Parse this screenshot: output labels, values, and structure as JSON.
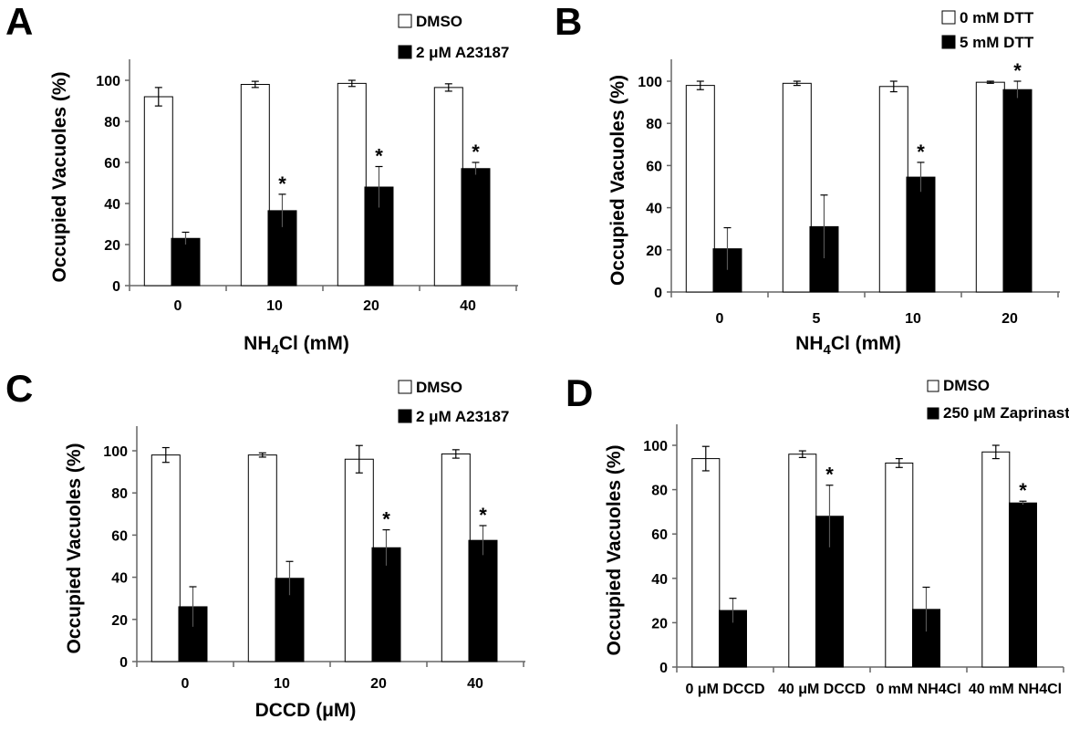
{
  "chart_data": [
    {
      "panel": "A",
      "type": "bar",
      "categories": [
        "0",
        "10",
        "20",
        "40"
      ],
      "series": [
        {
          "name": "DMSO",
          "values": [
            92,
            98,
            98.5,
            96.5
          ],
          "errors": [
            4.5,
            1.5,
            1.5,
            1.8
          ],
          "fill": "white"
        },
        {
          "name": "2 μM A23187",
          "values": [
            23,
            36.5,
            48,
            57
          ],
          "errors": [
            3,
            8,
            10,
            3
          ],
          "fill": "black"
        }
      ],
      "significance": [
        "",
        "*",
        "*",
        "*"
      ],
      "ylabel": "Occupied Vacuoles (%)",
      "xlabel_parts": [
        [
          "NH",
          ""
        ],
        [
          "4",
          "sub"
        ],
        [
          "Cl (mM)",
          ""
        ]
      ],
      "ylim": [
        0,
        100
      ],
      "yticks": [
        0,
        20,
        40,
        60,
        80,
        100
      ]
    },
    {
      "panel": "B",
      "type": "bar",
      "categories": [
        "0",
        "5",
        "10",
        "20"
      ],
      "series": [
        {
          "name": "0 mM DTT",
          "values": [
            98,
            99,
            97.5,
            99.5
          ],
          "errors": [
            2,
            1,
            2.5,
            0.5
          ],
          "fill": "white"
        },
        {
          "name": "5 mM DTT",
          "values": [
            20.5,
            31,
            54.5,
            96
          ],
          "errors": [
            10,
            15,
            7,
            4
          ],
          "fill": "black"
        }
      ],
      "significance": [
        "",
        "",
        "*",
        "*"
      ],
      "ylabel": "Occupied Vacuoles (%)",
      "xlabel_parts": [
        [
          "NH",
          ""
        ],
        [
          "4",
          "sub"
        ],
        [
          "Cl (mM)",
          ""
        ]
      ],
      "ylim": [
        0,
        100
      ],
      "yticks": [
        0,
        20,
        40,
        60,
        80,
        100
      ]
    },
    {
      "panel": "C",
      "type": "bar",
      "categories": [
        "0",
        "10",
        "20",
        "40"
      ],
      "series": [
        {
          "name": "DMSO",
          "values": [
            98,
            98,
            96,
            98.5
          ],
          "errors": [
            3.5,
            1,
            6.5,
            2
          ],
          "fill": "white"
        },
        {
          "name": "2 μM A23187",
          "values": [
            26,
            39.5,
            54,
            57.5
          ],
          "errors": [
            9.5,
            8,
            8.5,
            7
          ],
          "fill": "black"
        }
      ],
      "significance": [
        "",
        "",
        "*",
        "*"
      ],
      "ylabel": "Occupied Vacuoles (%)",
      "xlabel_parts": [
        [
          "DCCD (μM)",
          ""
        ]
      ],
      "ylim": [
        0,
        100
      ],
      "yticks": [
        0,
        20,
        40,
        60,
        80,
        100
      ]
    },
    {
      "panel": "D",
      "type": "bar",
      "categories": [
        "0 μM DCCD",
        "40 μM DCCD",
        "0 mM NH4Cl",
        "40 mM NH4Cl"
      ],
      "series": [
        {
          "name": "DMSO",
          "values": [
            94,
            96,
            92,
            97
          ],
          "errors": [
            5.5,
            1.5,
            2,
            3
          ],
          "fill": "white"
        },
        {
          "name": "250 μM Zaprinast",
          "values": [
            25.5,
            68,
            26,
            74
          ],
          "errors": [
            5.5,
            14,
            10,
            0.8
          ],
          "fill": "black"
        }
      ],
      "significance": [
        "",
        "*",
        "",
        "*"
      ],
      "ylabel": "Occupied Vacuoles (%)",
      "xlabel_parts": [],
      "ylim": [
        0,
        100
      ],
      "yticks": [
        0,
        20,
        40,
        60,
        80,
        100
      ]
    }
  ]
}
